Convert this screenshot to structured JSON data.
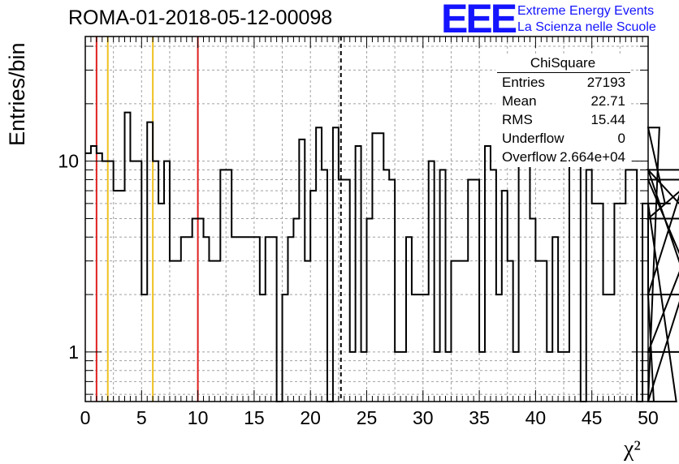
{
  "header": {
    "title": "ROMA-01-2018-05-12-00098",
    "logo": "EEE",
    "logo_line1": "Extreme Energy Events",
    "logo_line2": "La Scienza nelle Scuole"
  },
  "stats": {
    "title": "ChiSquare",
    "rows": [
      {
        "label": "Entries",
        "value": "27193"
      },
      {
        "label": "Mean",
        "value": "22.71"
      },
      {
        "label": "RMS",
        "value": "15.44"
      },
      {
        "label": "Underflow",
        "value": "0"
      },
      {
        "label": "Overflow",
        "value": "2.664e+04"
      }
    ]
  },
  "colors": {
    "red_lines": "#e0201e",
    "yellow_lines": "#f0c020",
    "histogram": "#000000",
    "grid": "#a0a0a0",
    "logo": "#1414ff"
  },
  "chart_data": {
    "type": "histogram",
    "title": "ROMA-01-2018-05-12-00098",
    "xlabel": "χ²",
    "ylabel": "Entries/bin",
    "xlim": [
      0,
      50
    ],
    "ylim": [
      0.55,
      45
    ],
    "yscale": "log",
    "grid": true,
    "bin_width": 0.5,
    "x_ticks": [
      0,
      5,
      10,
      15,
      20,
      25,
      30,
      35,
      40,
      45,
      50
    ],
    "y_ticks": [
      1,
      10
    ],
    "values": [
      11,
      12,
      11,
      10,
      10,
      7,
      7,
      18,
      10,
      10,
      2,
      16,
      10,
      6,
      10,
      3,
      3,
      4,
      4,
      5,
      5,
      4,
      3,
      3,
      9,
      9,
      4,
      4,
      4,
      4,
      4,
      2,
      4,
      4,
      0,
      2,
      4,
      5,
      13,
      3,
      7,
      15,
      9,
      0,
      15,
      8,
      8,
      1,
      12,
      1,
      5,
      14,
      14,
      9,
      8,
      1,
      1,
      4,
      2,
      2,
      2,
      10,
      1,
      9,
      1,
      3,
      3,
      3,
      8,
      8,
      1,
      12,
      9,
      2,
      7,
      3,
      1,
      10,
      10,
      5,
      3,
      3,
      1,
      4,
      1,
      1,
      19,
      19,
      0,
      9,
      6,
      6,
      2,
      2,
      6,
      6,
      9,
      9,
      0,
      6,
      2,
      0,
      15,
      6,
      6,
      0,
      2,
      9,
      5,
      5,
      9,
      1,
      8,
      1
    ],
    "vertical_lines": [
      {
        "x": 1,
        "style": "red"
      },
      {
        "x": 2,
        "style": "yellow"
      },
      {
        "x": 6,
        "style": "yellow"
      },
      {
        "x": 10,
        "style": "red"
      },
      {
        "x": 22.71,
        "style": "dashed"
      }
    ]
  }
}
